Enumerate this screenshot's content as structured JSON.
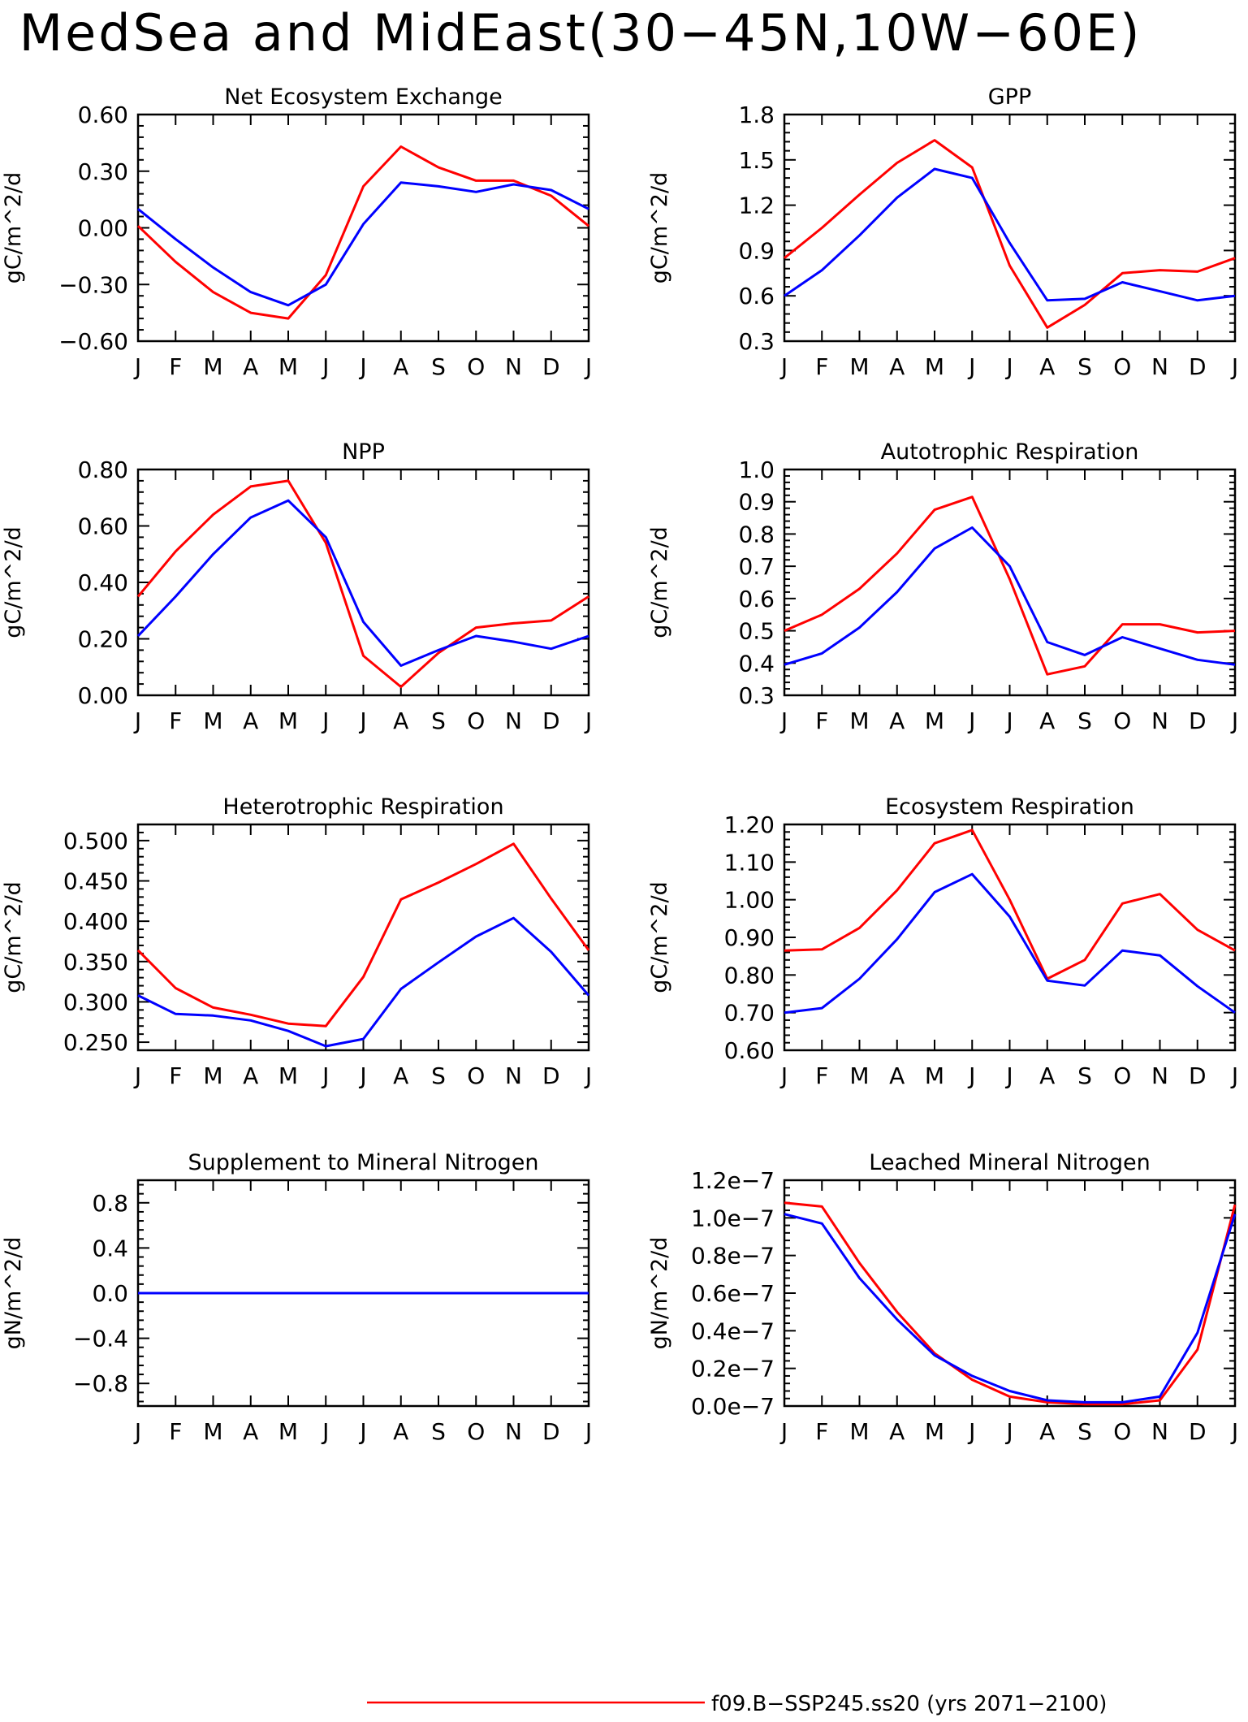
{
  "title": "MedSea and MidEast(30−45N,10W−60E)",
  "colors": {
    "red": "#ff0000",
    "blue": "#0000ff",
    "axis": "#000000"
  },
  "months": [
    "J",
    "F",
    "M",
    "A",
    "M",
    "J",
    "J",
    "A",
    "S",
    "O",
    "N",
    "D",
    "J"
  ],
  "chart_data": [
    {
      "type": "line",
      "title": "Net Ecosystem Exchange",
      "ylabel": "gC/m^2/d",
      "ylim": [
        -0.6,
        0.6
      ],
      "yticks": [
        -0.6,
        -0.3,
        0.0,
        0.3,
        0.6
      ],
      "yticklabels": [
        "−0.60",
        "−0.30",
        "0.00",
        "0.30",
        "0.60"
      ],
      "categories": [
        "J",
        "F",
        "M",
        "A",
        "M",
        "J",
        "J",
        "A",
        "S",
        "O",
        "N",
        "D",
        "J"
      ],
      "series": [
        {
          "color": "#ff0000",
          "values": [
            0.01,
            -0.18,
            -0.34,
            -0.45,
            -0.48,
            -0.25,
            0.22,
            0.43,
            0.32,
            0.25,
            0.25,
            0.17,
            0.01
          ]
        },
        {
          "color": "#0000ff",
          "values": [
            0.1,
            -0.06,
            -0.21,
            -0.34,
            -0.41,
            -0.3,
            0.02,
            0.24,
            0.22,
            0.19,
            0.23,
            0.2,
            0.1
          ]
        }
      ]
    },
    {
      "type": "line",
      "title": "GPP",
      "ylabel": "gC/m^2/d",
      "ylim": [
        0.3,
        1.8
      ],
      "yticks": [
        0.3,
        0.6,
        0.9,
        1.2,
        1.5,
        1.8
      ],
      "yticklabels": [
        "0.3",
        "0.6",
        "0.9",
        "1.2",
        "1.5",
        "1.8"
      ],
      "categories": [
        "J",
        "F",
        "M",
        "A",
        "M",
        "J",
        "J",
        "A",
        "S",
        "O",
        "N",
        "D",
        "J"
      ],
      "series": [
        {
          "color": "#ff0000",
          "values": [
            0.85,
            1.05,
            1.27,
            1.48,
            1.63,
            1.45,
            0.8,
            0.39,
            0.54,
            0.75,
            0.77,
            0.76,
            0.85
          ]
        },
        {
          "color": "#0000ff",
          "values": [
            0.6,
            0.77,
            1.0,
            1.25,
            1.44,
            1.38,
            0.95,
            0.57,
            0.58,
            0.69,
            0.63,
            0.57,
            0.6
          ]
        }
      ]
    },
    {
      "type": "line",
      "title": "NPP",
      "ylabel": "gC/m^2/d",
      "ylim": [
        0.0,
        0.8
      ],
      "yticks": [
        0.0,
        0.2,
        0.4,
        0.6,
        0.8
      ],
      "yticklabels": [
        "0.00",
        "0.20",
        "0.40",
        "0.60",
        "0.80"
      ],
      "categories": [
        "J",
        "F",
        "M",
        "A",
        "M",
        "J",
        "J",
        "A",
        "S",
        "O",
        "N",
        "D",
        "J"
      ],
      "series": [
        {
          "color": "#ff0000",
          "values": [
            0.35,
            0.51,
            0.64,
            0.74,
            0.76,
            0.54,
            0.14,
            0.03,
            0.15,
            0.24,
            0.255,
            0.265,
            0.35
          ]
        },
        {
          "color": "#0000ff",
          "values": [
            0.21,
            0.35,
            0.5,
            0.63,
            0.69,
            0.56,
            0.26,
            0.105,
            0.16,
            0.21,
            0.19,
            0.165,
            0.21
          ]
        }
      ]
    },
    {
      "type": "line",
      "title": "Autotrophic Respiration",
      "ylabel": "gC/m^2/d",
      "ylim": [
        0.3,
        1.0
      ],
      "yticks": [
        0.3,
        0.4,
        0.5,
        0.6,
        0.7,
        0.8,
        0.9,
        1.0
      ],
      "yticklabels": [
        "0.3",
        "0.4",
        "0.5",
        "0.6",
        "0.7",
        "0.8",
        "0.9",
        "1.0"
      ],
      "categories": [
        "J",
        "F",
        "M",
        "A",
        "M",
        "J",
        "J",
        "A",
        "S",
        "O",
        "N",
        "D",
        "J"
      ],
      "series": [
        {
          "color": "#ff0000",
          "values": [
            0.5,
            0.55,
            0.63,
            0.74,
            0.875,
            0.915,
            0.66,
            0.365,
            0.39,
            0.52,
            0.52,
            0.495,
            0.5
          ]
        },
        {
          "color": "#0000ff",
          "values": [
            0.395,
            0.43,
            0.51,
            0.62,
            0.755,
            0.82,
            0.7,
            0.465,
            0.425,
            0.48,
            0.445,
            0.41,
            0.395
          ]
        }
      ]
    },
    {
      "type": "line",
      "title": "Heterotrophic Respiration",
      "ylabel": "gC/m^2/d",
      "ylim": [
        0.24,
        0.52
      ],
      "yticks": [
        0.25,
        0.3,
        0.35,
        0.4,
        0.45,
        0.5
      ],
      "yticklabels": [
        "0.250",
        "0.300",
        "0.350",
        "0.400",
        "0.450",
        "0.500"
      ],
      "categories": [
        "J",
        "F",
        "M",
        "A",
        "M",
        "J",
        "J",
        "A",
        "S",
        "O",
        "N",
        "D",
        "J"
      ],
      "series": [
        {
          "color": "#ff0000",
          "values": [
            0.364,
            0.317,
            0.293,
            0.284,
            0.273,
            0.27,
            0.331,
            0.427,
            0.448,
            0.471,
            0.496,
            0.428,
            0.364
          ]
        },
        {
          "color": "#0000ff",
          "values": [
            0.308,
            0.285,
            0.283,
            0.277,
            0.264,
            0.245,
            0.254,
            0.316,
            0.349,
            0.381,
            0.404,
            0.362,
            0.308
          ]
        }
      ]
    },
    {
      "type": "line",
      "title": "Ecosystem Respiration",
      "ylabel": "gC/m^2/d",
      "ylim": [
        0.6,
        1.2
      ],
      "yticks": [
        0.6,
        0.7,
        0.8,
        0.9,
        1.0,
        1.1,
        1.2
      ],
      "yticklabels": [
        "0.60",
        "0.70",
        "0.80",
        "0.90",
        "1.00",
        "1.10",
        "1.20"
      ],
      "categories": [
        "J",
        "F",
        "M",
        "A",
        "M",
        "J",
        "J",
        "A",
        "S",
        "O",
        "N",
        "D",
        "J"
      ],
      "series": [
        {
          "color": "#ff0000",
          "values": [
            0.865,
            0.868,
            0.925,
            1.025,
            1.15,
            1.185,
            1.0,
            0.79,
            0.84,
            0.99,
            1.015,
            0.92,
            0.865
          ]
        },
        {
          "color": "#0000ff",
          "values": [
            0.7,
            0.712,
            0.79,
            0.895,
            1.02,
            1.068,
            0.955,
            0.785,
            0.772,
            0.865,
            0.852,
            0.77,
            0.7
          ]
        }
      ]
    },
    {
      "type": "line",
      "title": "Supplement to Mineral Nitrogen",
      "ylabel": "gN/m^2/d",
      "ylim": [
        -1.0,
        1.0
      ],
      "yticks": [
        -0.8,
        -0.4,
        0.0,
        0.4,
        0.8
      ],
      "yticklabels": [
        "−0.8",
        "−0.4",
        "0.0",
        "0.4",
        "0.8"
      ],
      "categories": [
        "J",
        "F",
        "M",
        "A",
        "M",
        "J",
        "J",
        "A",
        "S",
        "O",
        "N",
        "D",
        "J"
      ],
      "series": [
        {
          "color": "#ff0000",
          "values": [
            0,
            0,
            0,
            0,
            0,
            0,
            0,
            0,
            0,
            0,
            0,
            0,
            0
          ]
        },
        {
          "color": "#0000ff",
          "values": [
            0,
            0,
            0,
            0,
            0,
            0,
            0,
            0,
            0,
            0,
            0,
            0,
            0
          ]
        }
      ]
    },
    {
      "type": "line",
      "title": "Leached Mineral Nitrogen",
      "ylabel": "gN/m^2/d",
      "ylim": [
        0.0,
        1.2e-07
      ],
      "yticks": [
        0.0,
        2e-08,
        4e-08,
        6e-08,
        8e-08,
        1e-07,
        1.2e-07
      ],
      "yticklabels": [
        "0.0e−7",
        "0.2e−7",
        "0.4e−7",
        "0.6e−7",
        "0.8e−7",
        "1.0e−7",
        "1.2e−7"
      ],
      "categories": [
        "J",
        "F",
        "M",
        "A",
        "M",
        "J",
        "J",
        "A",
        "S",
        "O",
        "N",
        "D",
        "J"
      ],
      "series": [
        {
          "color": "#ff0000",
          "values": [
            1.08e-07,
            1.06e-07,
            7.6e-08,
            5e-08,
            2.8e-08,
            1.4e-08,
            5e-09,
            2e-09,
            1e-09,
            1e-09,
            3e-09,
            3e-08,
            1.07e-07
          ]
        },
        {
          "color": "#0000ff",
          "values": [
            1.02e-07,
            9.7e-08,
            6.8e-08,
            4.6e-08,
            2.7e-08,
            1.6e-08,
            8e-09,
            3e-09,
            2e-09,
            2e-09,
            5e-09,
            3.9e-08,
            1.02e-07
          ]
        }
      ]
    }
  ],
  "legend": {
    "label": "f09.B−SSP245.ss20 (yrs 2071−2100)",
    "color": "#ff0000",
    "placement": "bottom-right"
  }
}
